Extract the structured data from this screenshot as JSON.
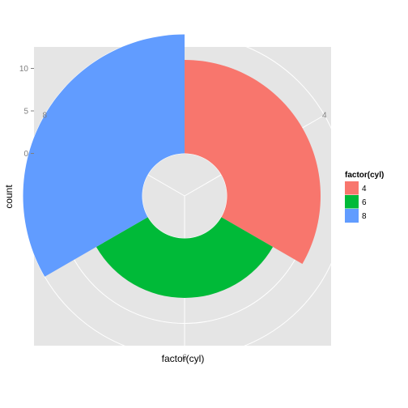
{
  "chart_data": {
    "type": "bar",
    "coord": "polar",
    "categories": [
      "4",
      "6",
      "8"
    ],
    "values": [
      11,
      7,
      14
    ],
    "xlabel": "factor(cyl)",
    "ylabel": "count",
    "y_ticks": [
      0,
      5,
      10
    ],
    "ylim": [
      -5,
      14
    ],
    "legend": {
      "title": "factor(cyl)",
      "entries": [
        "4",
        "6",
        "8"
      ],
      "colors": [
        "#F8766D",
        "#00BA38",
        "#619CFF"
      ],
      "position": "right"
    },
    "panel_background": "#E5E5E5",
    "grid": true
  }
}
